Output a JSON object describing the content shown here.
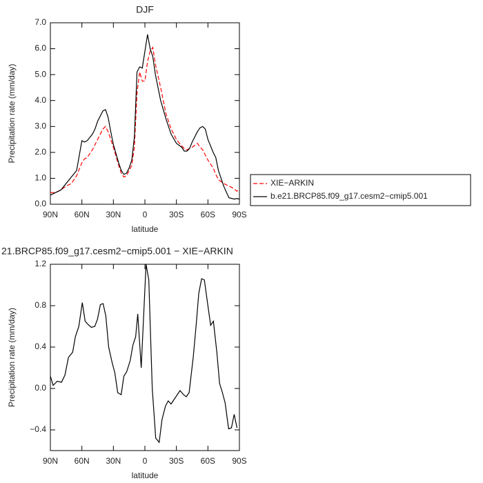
{
  "chart_data": [
    {
      "type": "line",
      "title": "DJF",
      "xlabel": "latitude",
      "ylabel": "Precipitation rate (mm/day)",
      "x": [
        90,
        85,
        80,
        75,
        70,
        65,
        60,
        57.5,
        55,
        50,
        47.5,
        45,
        40,
        37.5,
        35,
        32.5,
        30,
        25,
        22.5,
        20,
        17.5,
        15,
        12.5,
        10,
        7.5,
        5,
        2.5,
        0,
        -2.5,
        -5,
        -7.5,
        -10,
        -15,
        -20,
        -25,
        -30,
        -35,
        -37.5,
        -40,
        -42.5,
        -45,
        -50,
        -52.5,
        -55,
        -57.5,
        -60,
        -65,
        -67.5,
        -70,
        -75,
        -80,
        -85,
        -87.5,
        -90
      ],
      "series": [
        {
          "name": "XIE−ARKIN",
          "color": "#ff0000",
          "linestyle": "dashed",
          "values": [
            0.45,
            0.45,
            0.55,
            0.7,
            0.8,
            1.1,
            1.6,
            1.75,
            1.8,
            2.1,
            2.3,
            2.5,
            2.9,
            3.0,
            2.8,
            2.5,
            2.2,
            1.5,
            1.2,
            1.05,
            1.1,
            1.3,
            1.5,
            2.2,
            4.3,
            5.1,
            4.75,
            4.75,
            5.5,
            5.9,
            6.05,
            5.4,
            4.5,
            3.5,
            2.9,
            2.5,
            2.25,
            2.15,
            2.1,
            2.15,
            2.2,
            2.35,
            2.2,
            2.1,
            1.9,
            1.7,
            1.4,
            1.15,
            0.95,
            0.8,
            0.7,
            0.6,
            0.5,
            0.6
          ]
        },
        {
          "name": "b.e21.BRCP85.f09_g17.cesm2−cmip5.001",
          "color": "#000000",
          "linestyle": "solid",
          "values": [
            0.35,
            0.45,
            0.55,
            0.8,
            1.05,
            1.3,
            2.45,
            2.4,
            2.45,
            2.7,
            2.9,
            3.2,
            3.6,
            3.65,
            3.35,
            2.8,
            2.3,
            1.6,
            1.3,
            1.15,
            1.2,
            1.4,
            1.7,
            2.6,
            5.1,
            5.3,
            5.25,
            5.9,
            6.55,
            6.0,
            5.7,
            5.0,
            4.0,
            3.3,
            2.7,
            2.35,
            2.2,
            2.05,
            2.05,
            2.15,
            2.4,
            2.8,
            2.95,
            3.0,
            2.9,
            2.5,
            2.0,
            1.8,
            1.3,
            0.7,
            0.25,
            0.2,
            0.22,
            0.2
          ]
        }
      ],
      "xlim": [
        90,
        -90
      ],
      "xticks": [
        {
          "value": 90,
          "label": "90N"
        },
        {
          "value": 60,
          "label": "60N"
        },
        {
          "value": 30,
          "label": "30N"
        },
        0,
        {
          "value": -30,
          "label": "30S"
        },
        {
          "value": -60,
          "label": "60S"
        },
        {
          "value": -90,
          "label": "90S"
        }
      ],
      "ylim": [
        0,
        7
      ],
      "yticks": [
        {
          "value": 0,
          "label": "0.0"
        },
        {
          "value": 1,
          "label": "1.0"
        },
        {
          "value": 2,
          "label": "2.0"
        },
        {
          "value": 3,
          "label": "3.0"
        },
        {
          "value": 4,
          "label": "4.0"
        },
        {
          "value": 5,
          "label": "5.0"
        },
        {
          "value": 6,
          "label": "6.0"
        },
        {
          "value": 7,
          "label": "7.0"
        }
      ],
      "legend": "right"
    },
    {
      "type": "line",
      "title": "21.BRCP85.f09_g17.cesm2−cmip5.001 − XIE−ARKIN",
      "xlabel": "latitude",
      "ylabel": "Precipitation rate (mm/day)",
      "x": [
        90,
        87.4,
        83.4,
        79.4,
        76.1,
        72.8,
        68.8,
        66.2,
        62.9,
        59.6,
        56.9,
        54.3,
        51.0,
        47.7,
        45.1,
        42.4,
        39.8,
        37.2,
        34.5,
        31.2,
        28.6,
        25.9,
        22.6,
        20.0,
        17.4,
        14.0,
        11.4,
        8.8,
        6.8,
        3.5,
        -1.1,
        -3.7,
        -7.0,
        -10.3,
        -13.6,
        -16.3,
        -19.6,
        -22.2,
        -24.9,
        -28.2,
        -31.5,
        -33.5,
        -36.8,
        -39.4,
        -42.1,
        -46.0,
        -48.7,
        -51.3,
        -54.0,
        -56.6,
        -59.3,
        -62.6,
        -65.2,
        -68.5,
        -71.1,
        -73.8,
        -76.4,
        -79.7,
        -82.4,
        -85.0,
        -87.7
      ],
      "series": [
        {
          "color": "#000000",
          "linestyle": "solid",
          "values": [
            0.12,
            0.03,
            0.07,
            0.06,
            0.13,
            0.3,
            0.35,
            0.5,
            0.6,
            0.83,
            0.65,
            0.62,
            0.59,
            0.6,
            0.67,
            0.81,
            0.82,
            0.7,
            0.4,
            0.25,
            0.15,
            -0.04,
            -0.06,
            0.12,
            0.16,
            0.27,
            0.42,
            0.5,
            0.72,
            0.2,
            1.2,
            1.05,
            0.0,
            -0.48,
            -0.52,
            -0.3,
            -0.17,
            -0.12,
            -0.15,
            -0.1,
            -0.05,
            -0.02,
            -0.06,
            -0.08,
            -0.04,
            0.3,
            0.6,
            0.92,
            1.06,
            1.05,
            0.85,
            0.61,
            0.65,
            0.35,
            0.05,
            -0.04,
            -0.14,
            -0.39,
            -0.38,
            -0.25,
            -0.38
          ]
        }
      ],
      "xlim": [
        90,
        -90
      ],
      "xticks": [
        {
          "value": 90,
          "label": "90N"
        },
        {
          "value": 60,
          "label": "60N"
        },
        {
          "value": 30,
          "label": "30N"
        },
        0,
        {
          "value": -30,
          "label": "30S"
        },
        {
          "value": -60,
          "label": "60S"
        },
        {
          "value": -90,
          "label": "90S"
        }
      ],
      "ylim": [
        -0.6,
        1.2
      ],
      "yticks": [
        {
          "value": -0.4,
          "label": "−0.4"
        },
        {
          "value": 0,
          "label": "0.0"
        },
        {
          "value": 0.4,
          "label": "0.4"
        },
        {
          "value": 0.8,
          "label": "0.8"
        },
        {
          "value": 1.2,
          "label": "1.2"
        }
      ]
    }
  ]
}
